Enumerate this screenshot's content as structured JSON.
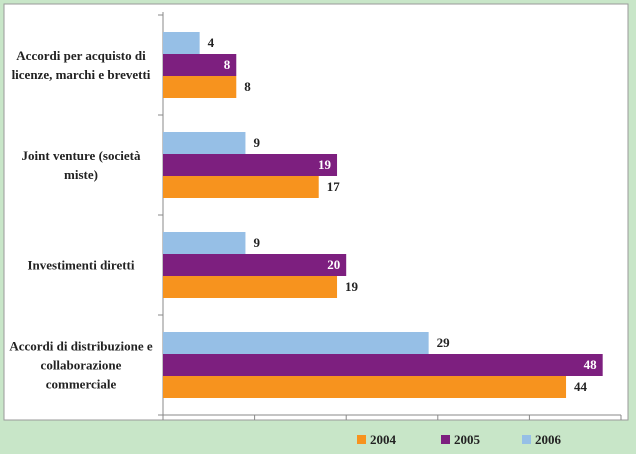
{
  "chart_data": {
    "type": "bar",
    "orientation": "horizontal",
    "categories": [
      "Accordi per acquisto di licenze, marchi e brevetti",
      "Joint venture (società miste)",
      "Investimenti diretti",
      "Accordi di distribuzione e collaborazione commerciale"
    ],
    "series": [
      {
        "name": "2004",
        "color": "#f7931e",
        "values": [
          8,
          17,
          19,
          44
        ]
      },
      {
        "name": "2005",
        "color": "#7d1f7f",
        "values": [
          8,
          19,
          20,
          48
        ]
      },
      {
        "name": "2006",
        "color": "#96bfe6",
        "values": [
          4,
          9,
          9,
          29
        ]
      }
    ],
    "xlim": [
      0,
      50
    ],
    "xticks": [
      0,
      10,
      20,
      30,
      40,
      50
    ],
    "legend": "bottom"
  }
}
